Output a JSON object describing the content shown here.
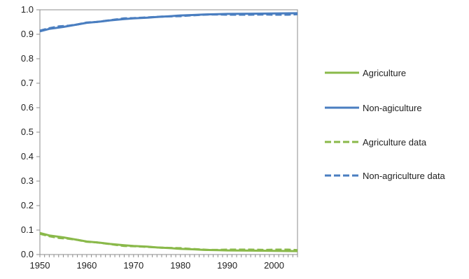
{
  "chart_data": {
    "type": "line",
    "xlim": [
      1950,
      2005
    ],
    "ylim": [
      0,
      1
    ],
    "x_ticks": [
      "1950",
      "1960",
      "1970",
      "1980",
      "1990",
      "2000"
    ],
    "y_ticks": [
      "0.0",
      "0.1",
      "0.2",
      "0.3",
      "0.4",
      "0.5",
      "0.6",
      "0.7",
      "0.8",
      "0.9",
      "1.0"
    ],
    "grid": false,
    "legend_position": "right",
    "colors": {
      "agriculture": "#8ab94a",
      "non_agriculture": "#4a7ec0",
      "axis": "#8c8c8c"
    },
    "series": [
      {
        "name": "Agriculture",
        "style": "solid",
        "x": [
          1950,
          1952,
          1955,
          1958,
          1960,
          1963,
          1965,
          1968,
          1970,
          1973,
          1975,
          1978,
          1980,
          1983,
          1985,
          1988,
          1990,
          1995,
          2000,
          2005
        ],
        "y": [
          0.088,
          0.078,
          0.07,
          0.06,
          0.053,
          0.048,
          0.043,
          0.038,
          0.035,
          0.032,
          0.029,
          0.026,
          0.023,
          0.021,
          0.019,
          0.018,
          0.017,
          0.016,
          0.015,
          0.014
        ]
      },
      {
        "name": "Non-agiculture",
        "style": "solid",
        "x": [
          1950,
          1952,
          1955,
          1958,
          1960,
          1963,
          1965,
          1968,
          1970,
          1973,
          1975,
          1978,
          1980,
          1983,
          1985,
          1988,
          1990,
          1995,
          2000,
          2005
        ],
        "y": [
          0.912,
          0.922,
          0.93,
          0.94,
          0.947,
          0.952,
          0.957,
          0.962,
          0.965,
          0.968,
          0.971,
          0.974,
          0.977,
          0.979,
          0.981,
          0.982,
          0.983,
          0.984,
          0.985,
          0.986
        ]
      },
      {
        "name": "Agriculture data",
        "style": "dashed",
        "x": [
          1950,
          1952,
          1954,
          1956,
          1958,
          1960,
          1962,
          1964,
          1966,
          1968,
          1970,
          1972,
          1974,
          1976,
          1978,
          1980,
          1982,
          1984,
          1986,
          1988,
          1990,
          1992,
          1995,
          1998,
          2000,
          2003,
          2005
        ],
        "y": [
          0.085,
          0.075,
          0.068,
          0.065,
          0.06,
          0.052,
          0.05,
          0.045,
          0.04,
          0.035,
          0.034,
          0.032,
          0.03,
          0.028,
          0.027,
          0.026,
          0.023,
          0.021,
          0.019,
          0.019,
          0.02,
          0.02,
          0.02,
          0.019,
          0.02,
          0.02,
          0.018
        ]
      },
      {
        "name": "Non-agriculture data",
        "style": "dashed",
        "x": [
          1950,
          1952,
          1954,
          1956,
          1958,
          1960,
          1962,
          1964,
          1966,
          1968,
          1970,
          1972,
          1974,
          1976,
          1978,
          1980,
          1982,
          1984,
          1986,
          1988,
          1990,
          1992,
          1995,
          1998,
          2000,
          2003,
          2005
        ],
        "y": [
          0.915,
          0.925,
          0.932,
          0.935,
          0.94,
          0.948,
          0.95,
          0.955,
          0.96,
          0.965,
          0.966,
          0.968,
          0.97,
          0.972,
          0.973,
          0.974,
          0.977,
          0.979,
          0.981,
          0.981,
          0.98,
          0.98,
          0.98,
          0.981,
          0.98,
          0.98,
          0.982
        ]
      }
    ]
  }
}
